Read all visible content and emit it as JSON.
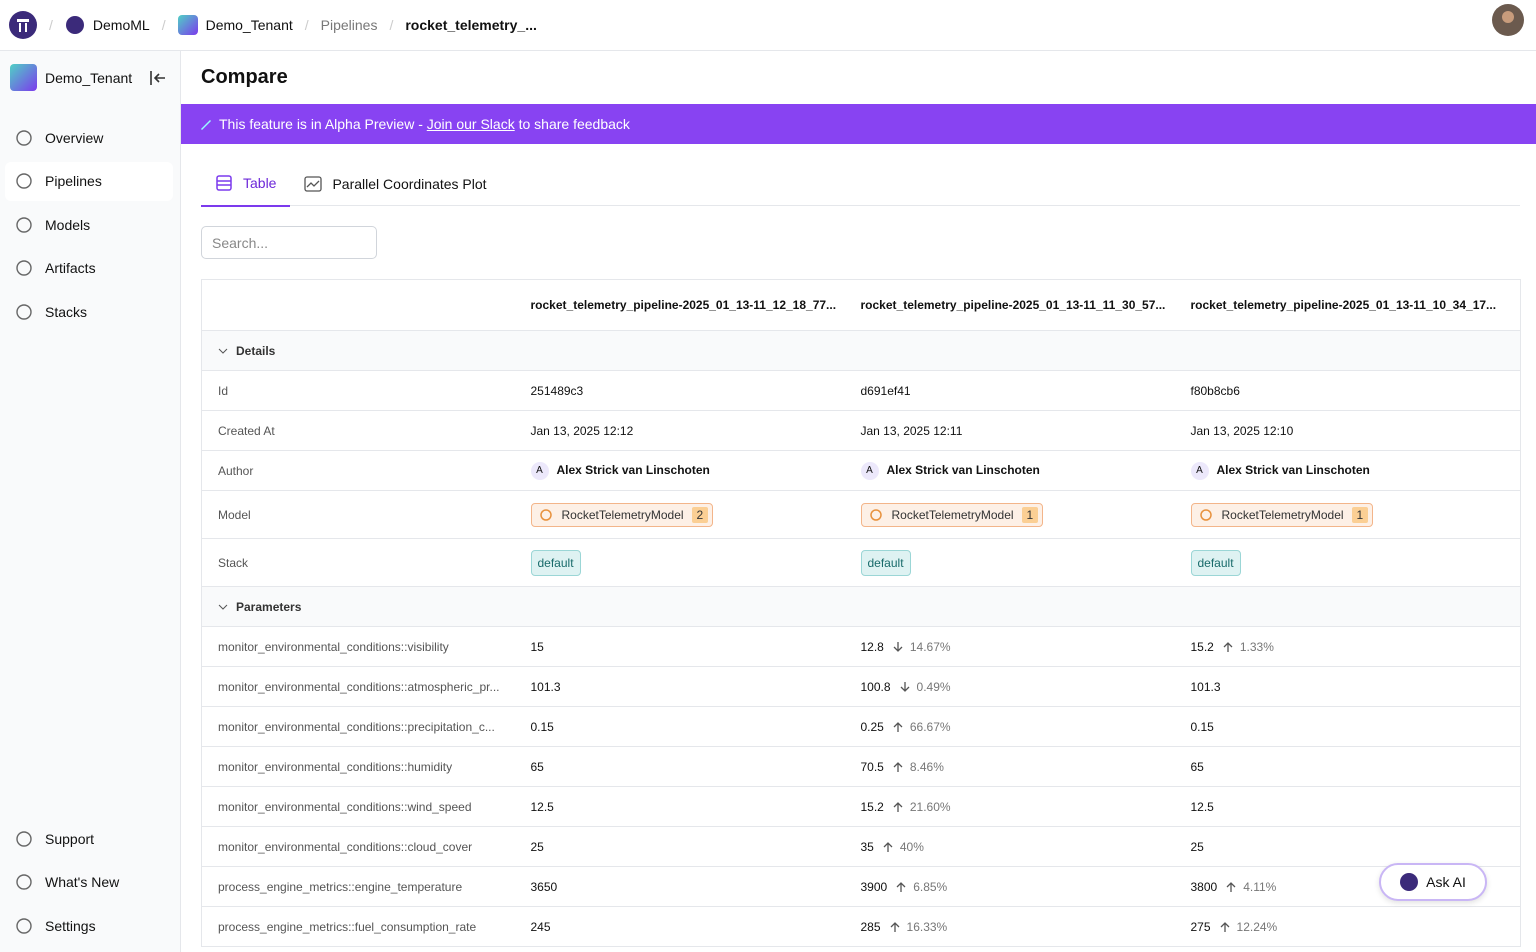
{
  "topbar": {
    "org": "DemoML",
    "tenant": "Demo_Tenant",
    "breadcrumb": [
      "Pipelines",
      "rocket_telemetry_..."
    ]
  },
  "sidebar": {
    "tenant": "Demo_Tenant",
    "nav": [
      "Overview",
      "Pipelines",
      "Models",
      "Artifacts",
      "Stacks"
    ],
    "footer": [
      "Support",
      "What's New",
      "Settings"
    ]
  },
  "page": {
    "title": "Compare",
    "banner": {
      "prefix": "This feature is in Alpha Preview - ",
      "link": "Join our Slack",
      "suffix": " to share feedback"
    },
    "tabs": [
      "Table",
      "Parallel Coordinates Plot"
    ],
    "search_placeholder": "Search..."
  },
  "table": {
    "columns": [
      "rocket_telemetry_pipeline-2025_01_13-11_12_18_77...",
      "rocket_telemetry_pipeline-2025_01_13-11_11_30_57...",
      "rocket_telemetry_pipeline-2025_01_13-11_10_34_17..."
    ],
    "sections": [
      {
        "title": "Details",
        "rows": [
          {
            "label": "Id",
            "cells": [
              "251489c3",
              "d691ef41",
              "f80b8cb6"
            ]
          },
          {
            "label": "Created At",
            "cells": [
              "Jan 13, 2025 12:12",
              "Jan 13, 2025 12:11",
              "Jan 13, 2025 12:10"
            ]
          },
          {
            "label": "Author",
            "cells": [
              {
                "initial": "A",
                "name": "Alex Strick van Linschoten"
              },
              {
                "initial": "A",
                "name": "Alex Strick van Linschoten"
              },
              {
                "initial": "A",
                "name": "Alex Strick van Linschoten"
              }
            ]
          },
          {
            "label": "Model",
            "cells": [
              {
                "name": "RocketTelemetryModel",
                "version": "2"
              },
              {
                "name": "RocketTelemetryModel",
                "version": "1"
              },
              {
                "name": "RocketTelemetryModel",
                "version": "1"
              }
            ]
          },
          {
            "label": "Stack",
            "cells": [
              {
                "stack": "default"
              },
              {
                "stack": "default"
              },
              {
                "stack": "default"
              }
            ]
          }
        ]
      },
      {
        "title": "Parameters",
        "rows": [
          {
            "label": "monitor_environmental_conditions::visibility",
            "cells": [
              {
                "value": "15"
              },
              {
                "value": "12.8",
                "delta": "14.67%"
              },
              {
                "value": "15.2",
                "delta": "1.33%"
              }
            ]
          },
          {
            "label": "monitor_environmental_conditions::atmospheric_pr...",
            "cells": [
              {
                "value": "101.3"
              },
              {
                "value": "100.8",
                "delta": "0.49%"
              },
              {
                "value": "101.3"
              }
            ]
          },
          {
            "label": "monitor_environmental_conditions::precipitation_c...",
            "cells": [
              {
                "value": "0.15"
              },
              {
                "value": "0.25",
                "delta": "66.67%"
              },
              {
                "value": "0.15"
              }
            ]
          },
          {
            "label": "monitor_environmental_conditions::humidity",
            "cells": [
              {
                "value": "65"
              },
              {
                "value": "70.5",
                "delta": "8.46%"
              },
              {
                "value": "65"
              }
            ]
          },
          {
            "label": "monitor_environmental_conditions::wind_speed",
            "cells": [
              {
                "value": "12.5"
              },
              {
                "value": "15.2",
                "delta": "21.60%"
              },
              {
                "value": "12.5"
              }
            ]
          },
          {
            "label": "monitor_environmental_conditions::cloud_cover",
            "cells": [
              {
                "value": "25"
              },
              {
                "value": "35",
                "delta": "40%"
              },
              {
                "value": "25"
              }
            ]
          },
          {
            "label": "process_engine_metrics::engine_temperature",
            "cells": [
              {
                "value": "3650"
              },
              {
                "value": "3900",
                "delta": "6.85%"
              },
              {
                "value": "3800",
                "delta": "4.11%"
              }
            ]
          },
          {
            "label": "process_engine_metrics::fuel_consumption_rate",
            "cells": [
              {
                "value": "245"
              },
              {
                "value": "285",
                "delta": "16.33%"
              },
              {
                "value": "275",
                "delta": "12.24%"
              }
            ]
          }
        ]
      }
    ]
  },
  "ask_ai": "Ask AI"
}
